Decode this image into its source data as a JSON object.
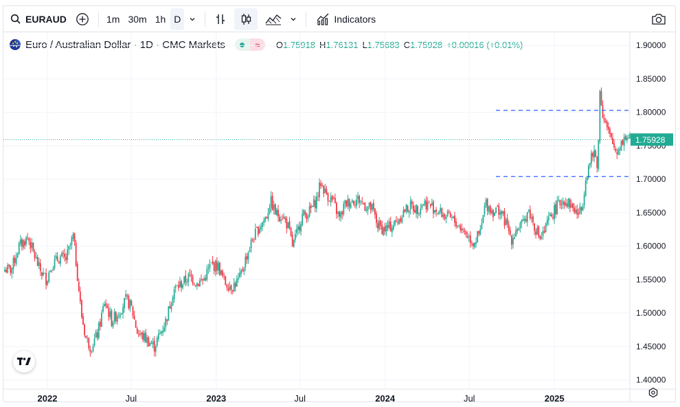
{
  "toolbar": {
    "symbol": "EURAUD",
    "intervals": [
      "1m",
      "30m",
      "1h",
      "D"
    ],
    "active_interval": "D",
    "indicators_label": "Indicators",
    "icons": [
      "search-icon",
      "add-symbol-icon",
      "chevron-down-icon",
      "bar-replay-icon",
      "candlestick-icon",
      "line-tool-icon",
      "camera-icon"
    ]
  },
  "legend": {
    "title": "Euro / Australian Dollar · 1D · CMC Markets",
    "approx": "≈",
    "ohlc": [
      {
        "k": "O",
        "v": "1.75918"
      },
      {
        "k": "H",
        "v": "1.76131"
      },
      {
        "k": "L",
        "v": "1.75683"
      },
      {
        "k": "C",
        "v": "1.75928"
      }
    ],
    "change": "+0.00016 (+0.01%)"
  },
  "colors": {
    "up": "#22ab94",
    "down": "#f23645",
    "grid": "#f0f3fa",
    "hline": "#2962ff",
    "price_line": "#22ab94"
  },
  "chart_data": {
    "type": "candlestick",
    "symbol": "EURAUD",
    "ylim": [
      1.38,
      1.91
    ],
    "y_ticks": [
      "1.90000",
      "1.85000",
      "1.80000",
      "1.75000",
      "1.70000",
      "1.65000",
      "1.60000",
      "1.55000",
      "1.50000",
      "1.45000",
      "1.40000"
    ],
    "x_ticks": [
      "2022",
      "Jul",
      "2023",
      "Jul",
      "2024",
      "Jul",
      "2025"
    ],
    "last_price": "1.75928",
    "horizontal_lines": [
      1.803,
      1.704
    ],
    "series_close": [
      [
        "2021-10-15",
        1.565
      ],
      [
        "2021-11-01",
        1.6
      ],
      [
        "2021-11-20",
        1.613
      ],
      [
        "2021-12-15",
        1.565
      ],
      [
        "2021-12-30",
        1.55
      ],
      [
        "2022-01-10",
        1.572
      ],
      [
        "2022-01-28",
        1.583
      ],
      [
        "2022-02-10",
        1.58
      ],
      [
        "2022-02-26",
        1.615
      ],
      [
        "2022-03-05",
        1.57
      ],
      [
        "2022-03-15",
        1.5
      ],
      [
        "2022-03-25",
        1.463
      ],
      [
        "2022-04-05",
        1.448
      ],
      [
        "2022-04-20",
        1.47
      ],
      [
        "2022-05-05",
        1.518
      ],
      [
        "2022-05-20",
        1.488
      ],
      [
        "2022-06-05",
        1.502
      ],
      [
        "2022-06-20",
        1.52
      ],
      [
        "2022-07-01",
        1.51
      ],
      [
        "2022-07-15",
        1.47
      ],
      [
        "2022-08-01",
        1.462
      ],
      [
        "2022-08-20",
        1.45
      ],
      [
        "2022-09-01",
        1.468
      ],
      [
        "2022-09-15",
        1.49
      ],
      [
        "2022-10-01",
        1.535
      ],
      [
        "2022-10-20",
        1.545
      ],
      [
        "2022-11-05",
        1.555
      ],
      [
        "2022-11-20",
        1.545
      ],
      [
        "2022-12-05",
        1.55
      ],
      [
        "2022-12-20",
        1.572
      ],
      [
        "2023-01-05",
        1.57
      ],
      [
        "2023-01-20",
        1.545
      ],
      [
        "2023-02-05",
        1.54
      ],
      [
        "2023-02-20",
        1.55
      ],
      [
        "2023-03-05",
        1.58
      ],
      [
        "2023-03-20",
        1.61
      ],
      [
        "2023-04-05",
        1.63
      ],
      [
        "2023-04-20",
        1.645
      ],
      [
        "2023-04-28",
        1.668
      ],
      [
        "2023-05-10",
        1.648
      ],
      [
        "2023-05-25",
        1.645
      ],
      [
        "2023-06-05",
        1.63
      ],
      [
        "2023-06-15",
        1.6
      ],
      [
        "2023-06-25",
        1.62
      ],
      [
        "2023-07-05",
        1.645
      ],
      [
        "2023-07-20",
        1.65
      ],
      [
        "2023-08-05",
        1.668
      ],
      [
        "2023-08-15",
        1.695
      ],
      [
        "2023-08-25",
        1.68
      ],
      [
        "2023-09-10",
        1.667
      ],
      [
        "2023-09-25",
        1.64
      ],
      [
        "2023-10-05",
        1.662
      ],
      [
        "2023-10-20",
        1.668
      ],
      [
        "2023-11-05",
        1.67
      ],
      [
        "2023-11-20",
        1.66
      ],
      [
        "2023-12-05",
        1.655
      ],
      [
        "2023-12-15",
        1.632
      ],
      [
        "2023-12-28",
        1.625
      ],
      [
        "2024-01-10",
        1.628
      ],
      [
        "2024-01-25",
        1.635
      ],
      [
        "2024-02-10",
        1.652
      ],
      [
        "2024-02-25",
        1.66
      ],
      [
        "2024-03-10",
        1.655
      ],
      [
        "2024-03-25",
        1.665
      ],
      [
        "2024-04-10",
        1.66
      ],
      [
        "2024-04-25",
        1.652
      ],
      [
        "2024-05-10",
        1.645
      ],
      [
        "2024-05-25",
        1.64
      ],
      [
        "2024-06-10",
        1.63
      ],
      [
        "2024-06-25",
        1.618
      ],
      [
        "2024-07-10",
        1.605
      ],
      [
        "2024-07-25",
        1.62
      ],
      [
        "2024-08-05",
        1.665
      ],
      [
        "2024-08-20",
        1.652
      ],
      [
        "2024-09-05",
        1.655
      ],
      [
        "2024-09-20",
        1.63
      ],
      [
        "2024-10-01",
        1.61
      ],
      [
        "2024-10-10",
        1.625
      ],
      [
        "2024-10-25",
        1.632
      ],
      [
        "2024-11-05",
        1.655
      ],
      [
        "2024-11-20",
        1.628
      ],
      [
        "2024-12-01",
        1.612
      ],
      [
        "2024-12-10",
        1.62
      ],
      [
        "2024-12-20",
        1.64
      ],
      [
        "2025-01-05",
        1.658
      ],
      [
        "2025-01-20",
        1.67
      ],
      [
        "2025-02-05",
        1.662
      ],
      [
        "2025-02-20",
        1.648
      ],
      [
        "2025-03-01",
        1.655
      ],
      [
        "2025-03-10",
        1.705
      ],
      [
        "2025-03-20",
        1.728
      ],
      [
        "2025-03-28",
        1.74
      ],
      [
        "2025-04-05",
        1.72
      ],
      [
        "2025-04-09",
        1.835
      ],
      [
        "2025-04-15",
        1.8
      ],
      [
        "2025-04-25",
        1.775
      ],
      [
        "2025-05-05",
        1.755
      ],
      [
        "2025-05-15",
        1.74
      ],
      [
        "2025-05-25",
        1.755
      ],
      [
        "2025-06-05",
        1.765
      ],
      [
        "2025-06-15",
        1.759
      ]
    ]
  }
}
